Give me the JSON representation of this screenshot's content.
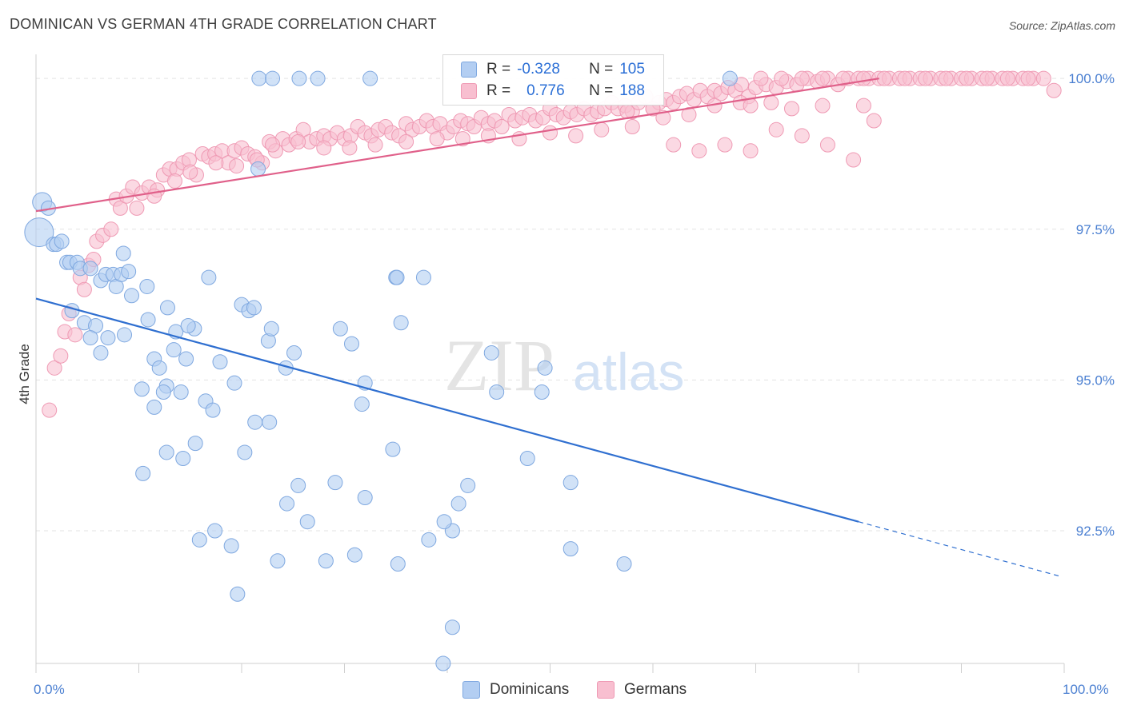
{
  "title": "DOMINICAN VS GERMAN 4TH GRADE CORRELATION CHART",
  "source": "Source: ZipAtlas.com",
  "watermark": {
    "zip": "ZIP",
    "atlas": "atlas"
  },
  "legend_stats": {
    "dominicans": {
      "r_label": "R =",
      "r_value": "-0.328",
      "n_label": "N =",
      "n_value": "105"
    },
    "germans": {
      "r_label": "R =",
      "r_value": "0.776",
      "n_label": "N =",
      "n_value": "188"
    }
  },
  "colors": {
    "dominicans_fill": "#b3cef2",
    "dominicans_stroke": "#7fa8e0",
    "dominicans_line": "#2f6fd0",
    "germans_fill": "#f8bfd0",
    "germans_stroke": "#ef9ab4",
    "germans_line": "#e0608a",
    "accent_text": "#2b6fd6",
    "grid": "#e3e3e3"
  },
  "chart_data": {
    "type": "scatter",
    "title": "DOMINICAN VS GERMAN 4TH GRADE CORRELATION CHART",
    "xlabel": "",
    "ylabel": "4th Grade",
    "xlim": [
      0,
      100
    ],
    "ylim": [
      90.3,
      100.4
    ],
    "x_tick_labels": [
      "0.0%",
      "100.0%"
    ],
    "y_ticks": [
      92.5,
      95.0,
      97.5,
      100.0
    ],
    "y_tick_labels": [
      "92.5%",
      "95.0%",
      "97.5%",
      "100.0%"
    ],
    "grid": true,
    "legend_position": "top-center",
    "series": [
      {
        "name": "Dominicans",
        "r": -0.328,
        "n": 105,
        "trend": {
          "x0": 0,
          "y0": 96.35,
          "x1": 80,
          "y1": 92.65,
          "dash_to_x": 99.5,
          "dash_to_y": 91.75
        },
        "points": [
          [
            0.6,
            97.95
          ],
          [
            1.2,
            97.85
          ],
          [
            0.3,
            97.45
          ],
          [
            1.7,
            97.25
          ],
          [
            2.0,
            97.25
          ],
          [
            2.5,
            97.3
          ],
          [
            3.0,
            96.95
          ],
          [
            3.3,
            96.95
          ],
          [
            4.0,
            96.95
          ],
          [
            4.3,
            96.85
          ],
          [
            5.3,
            96.85
          ],
          [
            6.3,
            96.65
          ],
          [
            6.8,
            96.75
          ],
          [
            7.5,
            96.75
          ],
          [
            7.8,
            96.55
          ],
          [
            8.3,
            96.75
          ],
          [
            8.5,
            97.1
          ],
          [
            10.8,
            96.55
          ],
          [
            9.3,
            96.4
          ],
          [
            3.5,
            96.15
          ],
          [
            4.7,
            95.95
          ],
          [
            5.8,
            95.9
          ],
          [
            10.9,
            96.0
          ],
          [
            5.3,
            95.7
          ],
          [
            7.0,
            95.7
          ],
          [
            8.6,
            95.75
          ],
          [
            13.6,
            95.8
          ],
          [
            15.4,
            95.85
          ],
          [
            6.3,
            95.45
          ],
          [
            11.5,
            95.35
          ],
          [
            12.0,
            95.2
          ],
          [
            13.4,
            95.5
          ],
          [
            14.6,
            95.35
          ],
          [
            17.9,
            95.3
          ],
          [
            20.0,
            96.25
          ],
          [
            20.7,
            96.15
          ],
          [
            22.6,
            95.65
          ],
          [
            22.9,
            95.85
          ],
          [
            24.3,
            95.2
          ],
          [
            25.1,
            95.45
          ],
          [
            29.6,
            95.85
          ],
          [
            30.7,
            95.6
          ],
          [
            32.0,
            94.95
          ],
          [
            35.0,
            96.7
          ],
          [
            35.1,
            96.7
          ],
          [
            35.5,
            95.95
          ],
          [
            37.7,
            96.7
          ],
          [
            44.3,
            95.45
          ],
          [
            49.5,
            95.2
          ],
          [
            12.7,
            94.9
          ],
          [
            14.1,
            94.8
          ],
          [
            16.5,
            94.65
          ],
          [
            17.2,
            94.5
          ],
          [
            19.3,
            94.95
          ],
          [
            22.7,
            94.3
          ],
          [
            21.3,
            94.3
          ],
          [
            11.5,
            94.55
          ],
          [
            31.7,
            94.6
          ],
          [
            49.2,
            94.8
          ],
          [
            44.8,
            94.8
          ],
          [
            10.3,
            94.85
          ],
          [
            12.4,
            94.8
          ],
          [
            15.5,
            93.95
          ],
          [
            12.7,
            93.8
          ],
          [
            14.3,
            93.7
          ],
          [
            20.3,
            93.8
          ],
          [
            34.7,
            93.85
          ],
          [
            47.8,
            93.7
          ],
          [
            10.4,
            93.45
          ],
          [
            25.5,
            93.25
          ],
          [
            29.1,
            93.3
          ],
          [
            42.0,
            93.25
          ],
          [
            52.0,
            93.3
          ],
          [
            32.0,
            93.05
          ],
          [
            24.4,
            92.95
          ],
          [
            41.1,
            92.95
          ],
          [
            26.4,
            92.65
          ],
          [
            17.4,
            92.5
          ],
          [
            15.9,
            92.35
          ],
          [
            19.0,
            92.25
          ],
          [
            40.5,
            92.5
          ],
          [
            39.7,
            92.65
          ],
          [
            23.5,
            92.0
          ],
          [
            28.2,
            92.0
          ],
          [
            31.0,
            92.1
          ],
          [
            35.2,
            91.95
          ],
          [
            38.2,
            92.35
          ],
          [
            52.0,
            92.2
          ],
          [
            57.2,
            91.95
          ],
          [
            19.6,
            91.45
          ],
          [
            40.5,
            90.9
          ],
          [
            39.6,
            90.3
          ],
          [
            21.6,
            98.5
          ],
          [
            21.7,
            100.0
          ],
          [
            23.0,
            100.0
          ],
          [
            25.6,
            100.0
          ],
          [
            27.4,
            100.0
          ],
          [
            32.5,
            100.0
          ],
          [
            67.5,
            100.0
          ],
          [
            9.0,
            96.8
          ],
          [
            16.8,
            96.7
          ],
          [
            21.2,
            96.2
          ],
          [
            14.8,
            95.9
          ],
          [
            12.8,
            96.2
          ]
        ]
      },
      {
        "name": "Germans",
        "r": 0.776,
        "n": 188,
        "trend": {
          "x0": 0,
          "y0": 97.8,
          "x1": 82,
          "y1": 100.0
        },
        "points": [
          [
            1.3,
            94.5
          ],
          [
            1.8,
            95.2
          ],
          [
            2.4,
            95.4
          ],
          [
            2.8,
            95.8
          ],
          [
            3.2,
            96.1
          ],
          [
            3.8,
            95.75
          ],
          [
            4.3,
            96.7
          ],
          [
            4.7,
            96.5
          ],
          [
            5.1,
            96.9
          ],
          [
            5.6,
            97.0
          ],
          [
            5.9,
            97.3
          ],
          [
            6.5,
            97.4
          ],
          [
            7.3,
            97.5
          ],
          [
            7.8,
            98.0
          ],
          [
            8.2,
            97.85
          ],
          [
            8.8,
            98.05
          ],
          [
            9.4,
            98.2
          ],
          [
            9.8,
            97.85
          ],
          [
            10.3,
            98.1
          ],
          [
            11.0,
            98.2
          ],
          [
            11.8,
            98.15
          ],
          [
            12.4,
            98.4
          ],
          [
            13.0,
            98.5
          ],
          [
            13.7,
            98.5
          ],
          [
            14.3,
            98.6
          ],
          [
            14.9,
            98.65
          ],
          [
            15.6,
            98.4
          ],
          [
            16.2,
            98.75
          ],
          [
            16.8,
            98.7
          ],
          [
            17.4,
            98.75
          ],
          [
            18.1,
            98.8
          ],
          [
            18.7,
            98.6
          ],
          [
            19.3,
            98.8
          ],
          [
            20.0,
            98.85
          ],
          [
            20.6,
            98.75
          ],
          [
            21.3,
            98.7
          ],
          [
            22.0,
            98.6
          ],
          [
            22.7,
            98.95
          ],
          [
            23.3,
            98.8
          ],
          [
            24.0,
            99.0
          ],
          [
            24.6,
            98.9
          ],
          [
            25.3,
            99.0
          ],
          [
            26.0,
            99.15
          ],
          [
            26.6,
            98.95
          ],
          [
            27.3,
            99.0
          ],
          [
            28.0,
            99.05
          ],
          [
            28.6,
            99.0
          ],
          [
            29.3,
            99.1
          ],
          [
            30.0,
            99.0
          ],
          [
            30.6,
            99.05
          ],
          [
            31.3,
            99.2
          ],
          [
            32.0,
            99.1
          ],
          [
            32.6,
            99.05
          ],
          [
            33.3,
            99.15
          ],
          [
            34.0,
            99.2
          ],
          [
            34.6,
            99.1
          ],
          [
            35.3,
            99.05
          ],
          [
            36.0,
            99.25
          ],
          [
            36.6,
            99.15
          ],
          [
            37.3,
            99.2
          ],
          [
            38.0,
            99.3
          ],
          [
            38.6,
            99.2
          ],
          [
            39.3,
            99.25
          ],
          [
            40.0,
            99.1
          ],
          [
            40.6,
            99.2
          ],
          [
            41.3,
            99.3
          ],
          [
            42.0,
            99.25
          ],
          [
            42.6,
            99.2
          ],
          [
            43.3,
            99.35
          ],
          [
            44.0,
            99.25
          ],
          [
            44.6,
            99.3
          ],
          [
            45.3,
            99.2
          ],
          [
            46.0,
            99.4
          ],
          [
            46.6,
            99.3
          ],
          [
            47.3,
            99.35
          ],
          [
            48.0,
            99.4
          ],
          [
            48.6,
            99.3
          ],
          [
            49.3,
            99.35
          ],
          [
            50.0,
            99.5
          ],
          [
            50.6,
            99.4
          ],
          [
            51.3,
            99.35
          ],
          [
            52.0,
            99.45
          ],
          [
            52.6,
            99.4
          ],
          [
            53.3,
            99.5
          ],
          [
            54.0,
            99.4
          ],
          [
            54.6,
            99.45
          ],
          [
            55.3,
            99.5
          ],
          [
            56.0,
            99.6
          ],
          [
            56.6,
            99.5
          ],
          [
            57.3,
            99.55
          ],
          [
            58.0,
            99.45
          ],
          [
            58.6,
            99.6
          ],
          [
            59.3,
            99.7
          ],
          [
            60.0,
            99.5
          ],
          [
            60.6,
            99.6
          ],
          [
            61.3,
            99.65
          ],
          [
            62.0,
            99.6
          ],
          [
            62.6,
            99.7
          ],
          [
            63.3,
            99.75
          ],
          [
            64.0,
            99.65
          ],
          [
            64.6,
            99.8
          ],
          [
            65.3,
            99.7
          ],
          [
            66.0,
            99.8
          ],
          [
            66.6,
            99.75
          ],
          [
            67.3,
            99.85
          ],
          [
            68.0,
            99.8
          ],
          [
            68.6,
            99.9
          ],
          [
            69.3,
            99.7
          ],
          [
            70.0,
            99.85
          ],
          [
            71.0,
            99.9
          ],
          [
            72.0,
            99.85
          ],
          [
            73.0,
            99.95
          ],
          [
            74.0,
            99.9
          ],
          [
            75.0,
            100.0
          ],
          [
            76.0,
            99.95
          ],
          [
            77.0,
            100.0
          ],
          [
            78.0,
            99.9
          ],
          [
            79.0,
            100.0
          ],
          [
            80.0,
            100.0
          ],
          [
            81.0,
            100.0
          ],
          [
            82.0,
            100.0
          ],
          [
            83.0,
            100.0
          ],
          [
            84.0,
            100.0
          ],
          [
            85.0,
            100.0
          ],
          [
            86.0,
            100.0
          ],
          [
            87.0,
            100.0
          ],
          [
            88.0,
            100.0
          ],
          [
            89.0,
            100.0
          ],
          [
            90.0,
            100.0
          ],
          [
            91.0,
            100.0
          ],
          [
            92.0,
            100.0
          ],
          [
            93.0,
            100.0
          ],
          [
            94.0,
            100.0
          ],
          [
            95.0,
            100.0
          ],
          [
            96.0,
            100.0
          ],
          [
            97.0,
            100.0
          ],
          [
            98.0,
            100.0
          ],
          [
            99.0,
            99.8
          ],
          [
            72.5,
            100.0
          ],
          [
            74.5,
            100.0
          ],
          [
            76.5,
            100.0
          ],
          [
            78.5,
            100.0
          ],
          [
            80.5,
            100.0
          ],
          [
            82.5,
            100.0
          ],
          [
            84.5,
            100.0
          ],
          [
            86.5,
            100.0
          ],
          [
            88.5,
            100.0
          ],
          [
            90.5,
            100.0
          ],
          [
            92.5,
            100.0
          ],
          [
            94.5,
            100.0
          ],
          [
            96.5,
            100.0
          ],
          [
            70.5,
            100.0
          ],
          [
            68.5,
            99.6
          ],
          [
            66.0,
            99.55
          ],
          [
            63.5,
            99.4
          ],
          [
            61.0,
            99.35
          ],
          [
            58.0,
            99.2
          ],
          [
            55.0,
            99.15
          ],
          [
            52.5,
            99.05
          ],
          [
            50.0,
            99.1
          ],
          [
            47.0,
            99.0
          ],
          [
            44.0,
            99.05
          ],
          [
            41.5,
            99.0
          ],
          [
            39.0,
            99.0
          ],
          [
            36.0,
            98.95
          ],
          [
            33.0,
            98.9
          ],
          [
            30.5,
            98.85
          ],
          [
            28.0,
            98.85
          ],
          [
            25.5,
            98.95
          ],
          [
            23.0,
            98.9
          ],
          [
            21.5,
            98.65
          ],
          [
            19.5,
            98.55
          ],
          [
            17.5,
            98.6
          ],
          [
            15.0,
            98.45
          ],
          [
            13.5,
            98.3
          ],
          [
            11.5,
            98.05
          ],
          [
            62.0,
            98.9
          ],
          [
            64.5,
            98.8
          ],
          [
            67.0,
            98.9
          ],
          [
            69.5,
            98.8
          ],
          [
            72.0,
            99.15
          ],
          [
            74.5,
            99.05
          ],
          [
            77.0,
            98.9
          ],
          [
            79.5,
            98.65
          ],
          [
            81.5,
            99.3
          ],
          [
            80.5,
            99.55
          ],
          [
            76.5,
            99.55
          ],
          [
            73.5,
            99.5
          ],
          [
            71.5,
            99.6
          ],
          [
            69.5,
            99.55
          ],
          [
            60.0,
            99.5
          ],
          [
            57.5,
            99.45
          ]
        ]
      }
    ]
  }
}
